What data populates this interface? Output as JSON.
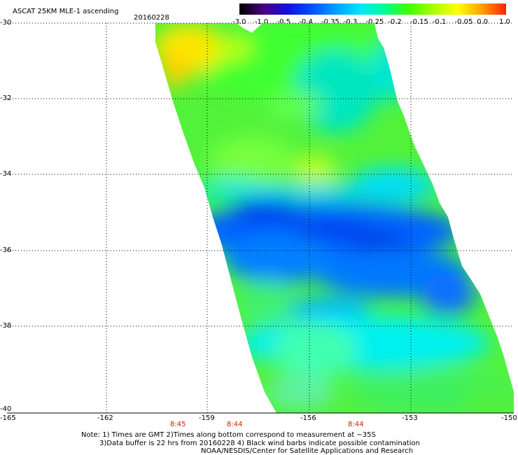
{
  "header": {
    "title": "ASCAT 25KM MLE-1 ascending",
    "date": "20160228"
  },
  "colorbar": {
    "labels": [
      "-3.0",
      "-1.0",
      "-0.5",
      "-0.4",
      "-0.35",
      "-0.3",
      "-0.25",
      "-0.2",
      "-0.15",
      "-0.1",
      "-0.05",
      "0.0",
      "1.0"
    ],
    "colors": [
      "#000000",
      "#4b0080",
      "#1010e0",
      "#0050ff",
      "#00a0ff",
      "#00e6ff",
      "#00ff90",
      "#40ff00",
      "#a8ff00",
      "#ffff00",
      "#ffa000",
      "#ff2000"
    ]
  },
  "axes": {
    "lat_labels": [
      "-30",
      "-32",
      "-34",
      "-36",
      "-38",
      "-40"
    ],
    "lon_labels": [
      "-165",
      "-162",
      "-159",
      "-156",
      "-153",
      "-150"
    ]
  },
  "times": [
    {
      "label": "8:45"
    },
    {
      "label": "8:44"
    },
    {
      "label": "8:44"
    }
  ],
  "notes": {
    "line1": "Note: 1) Times are GMT 2)Times along bottom correspond to measurement at ~35S",
    "line2": "3)Data buffer is 22 hrs from 20160228 4) Black wind barbs indicate possible contamination",
    "line3": "NOAA/NESDIS/Center for Satellite Applications and Research"
  }
}
